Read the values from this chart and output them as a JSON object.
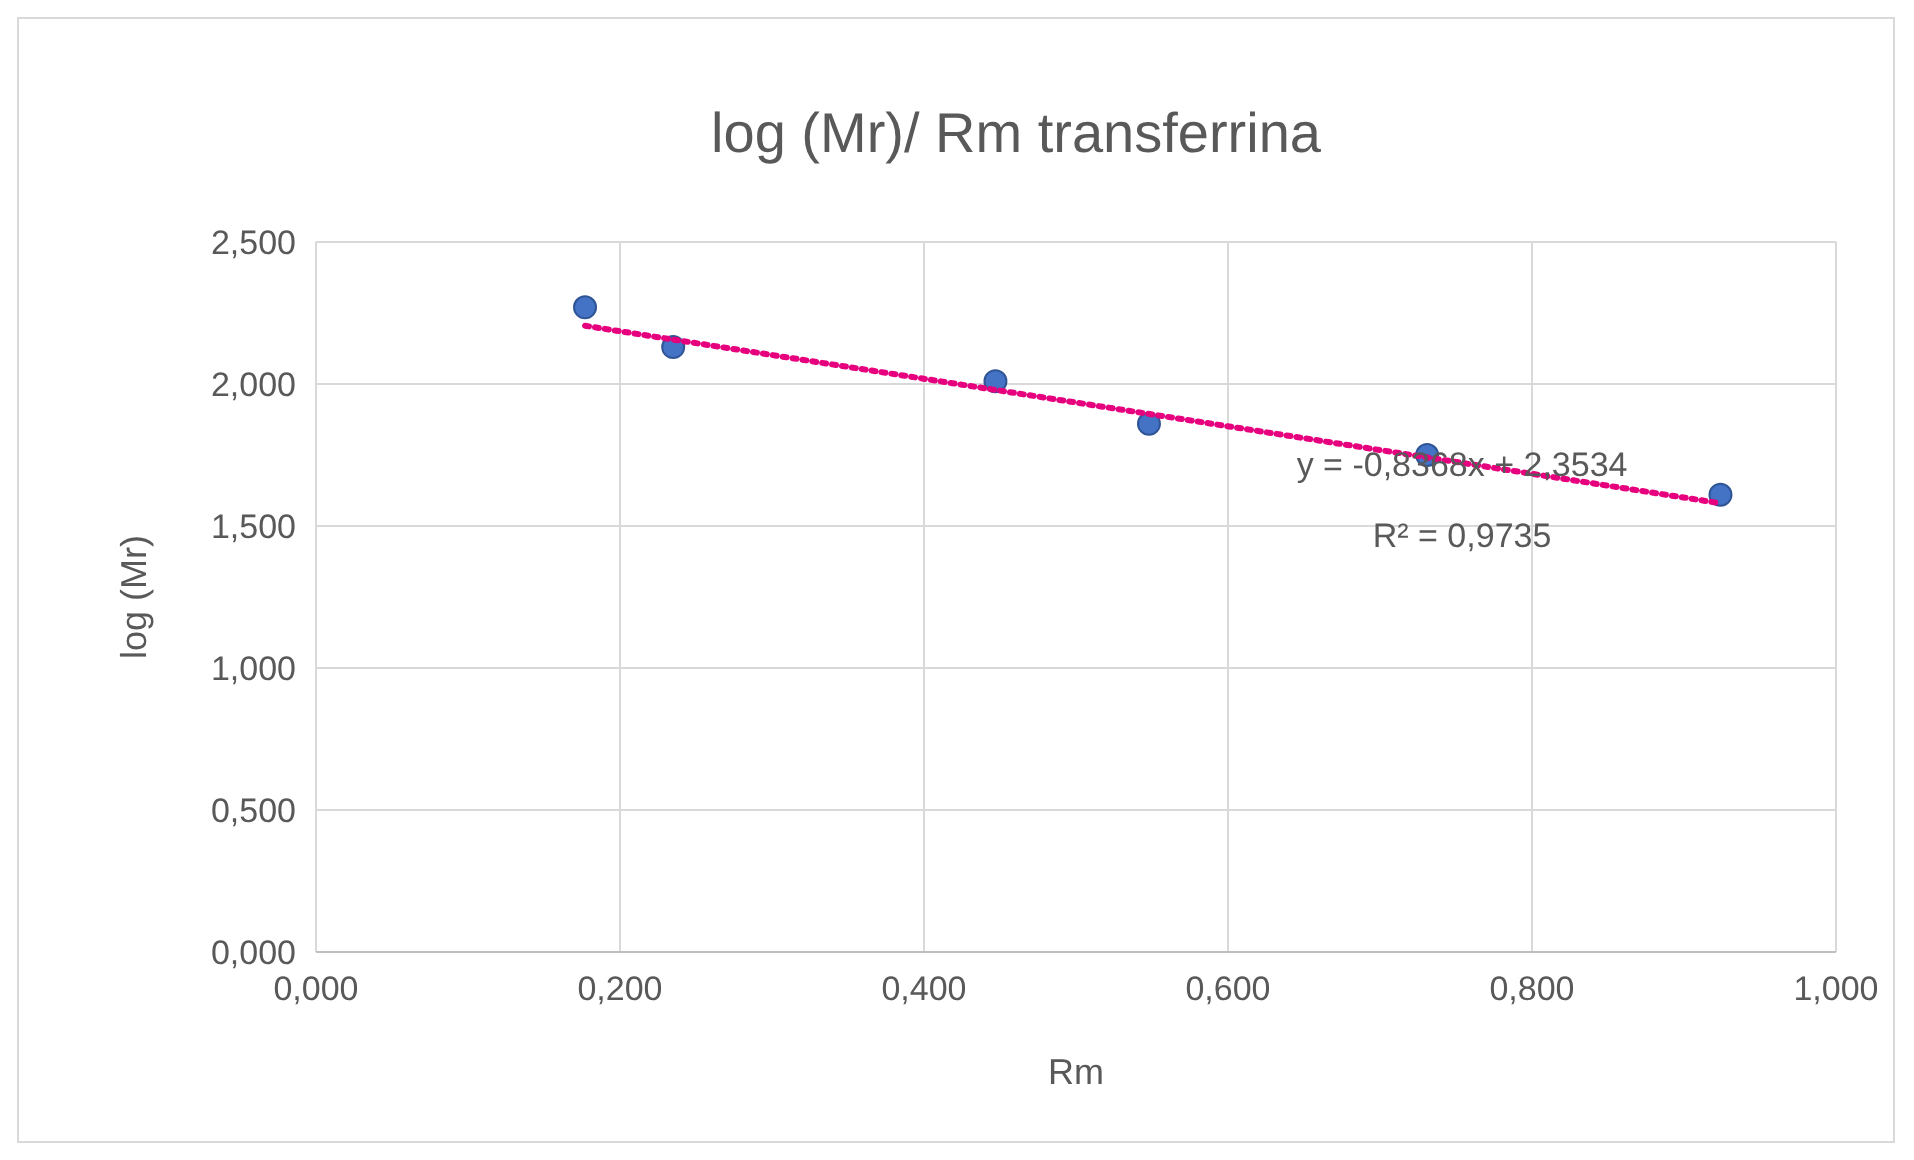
{
  "chart_data": {
    "type": "scatter",
    "title": "log (Mr)/ Rm transferrina",
    "xlabel": "Rm",
    "ylabel": "log (Mr)",
    "xlim": [
      0,
      1
    ],
    "xticks": [
      {
        "value": 0,
        "label": "0,000"
      },
      {
        "value": 0.2,
        "label": "0,200"
      },
      {
        "value": 0.4,
        "label": "0,400"
      },
      {
        "value": 0.6,
        "label": "0,600"
      },
      {
        "value": 0.8,
        "label": "0,800"
      },
      {
        "value": 1,
        "label": "1,000"
      }
    ],
    "ylim": [
      0,
      2.5
    ],
    "yticks": [
      {
        "value": 0,
        "label": "0,000"
      },
      {
        "value": 0.5,
        "label": "0,500"
      },
      {
        "value": 1,
        "label": "1,000"
      },
      {
        "value": 1.5,
        "label": "1,500"
      },
      {
        "value": 2,
        "label": "2,000"
      },
      {
        "value": 2.5,
        "label": "2,500"
      }
    ],
    "grid": true,
    "series": [
      {
        "color": "#4472c4",
        "marker": "circle",
        "x": [
          0.177,
          0.235,
          0.447,
          0.548,
          0.731,
          0.924
        ],
        "values": [
          2.27,
          2.13,
          2.01,
          1.86,
          1.75,
          1.61
        ]
      },
      {
        "type": "line",
        "color": "#e6007e",
        "line_style": "dotted",
        "marker": "none",
        "x": [
          0.177,
          0.924
        ],
        "values": [
          2.205,
          1.58
        ]
      }
    ],
    "annotations": [
      "y = -0,8368x + 2,3534",
      "R² = 0,9735"
    ]
  }
}
